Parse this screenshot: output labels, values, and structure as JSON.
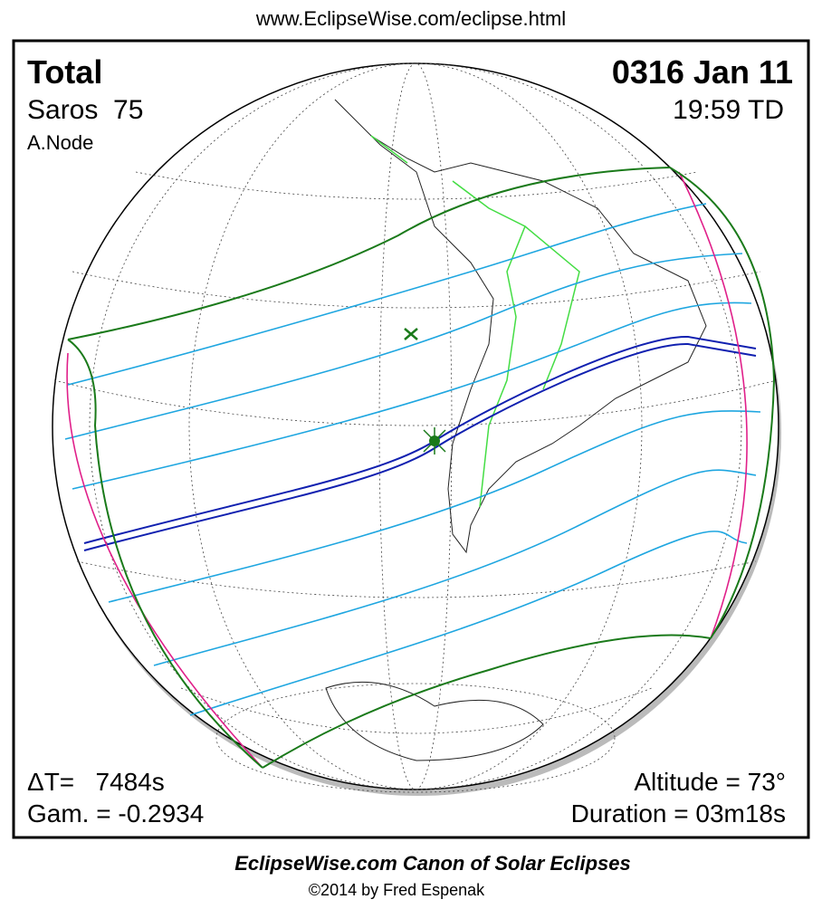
{
  "header": {
    "url": "www.EclipseWise.com/eclipse.html"
  },
  "panel": {
    "type": "Total",
    "date": "0316 Jan 11",
    "saros": "Saros  75",
    "time": "19:59 TD",
    "node": "A.Node",
    "delta_t": "ΔT=   7484s",
    "gamma": "Gam. = -0.2934",
    "altitude": "Altitude = 73°",
    "duration": "Duration = 03m18s"
  },
  "footer": {
    "title": "EclipseWise.com Canon of Solar Eclipses",
    "copyright": "©2014 by Fred Espenak"
  }
}
